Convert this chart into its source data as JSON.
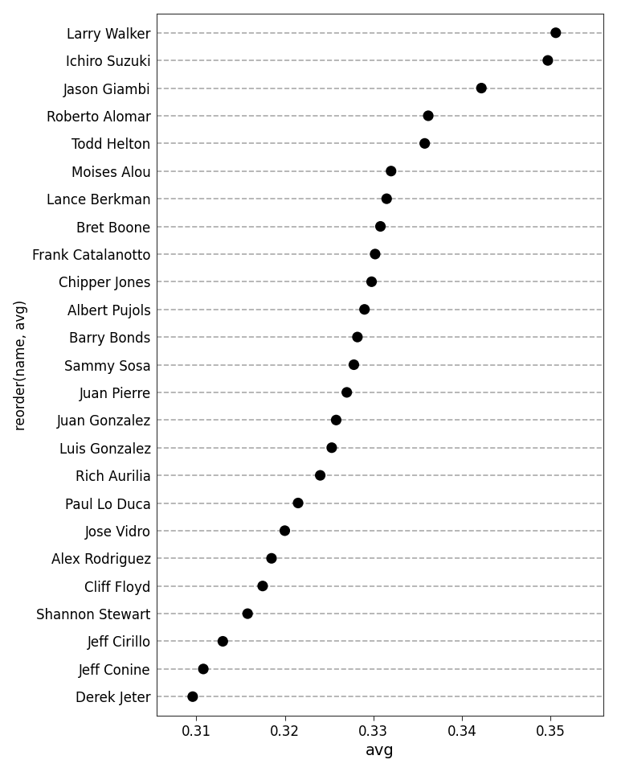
{
  "players": [
    {
      "name": "Derek Jeter",
      "avg": 0.3096
    },
    {
      "name": "Jeff Conine",
      "avg": 0.3108
    },
    {
      "name": "Jeff Cirillo",
      "avg": 0.313
    },
    {
      "name": "Shannon Stewart",
      "avg": 0.3158
    },
    {
      "name": "Cliff Floyd",
      "avg": 0.3175
    },
    {
      "name": "Alex Rodriguez",
      "avg": 0.3185
    },
    {
      "name": "Jose Vidro",
      "avg": 0.32
    },
    {
      "name": "Paul Lo Duca",
      "avg": 0.3215
    },
    {
      "name": "Rich Aurilia",
      "avg": 0.324
    },
    {
      "name": "Luis Gonzalez",
      "avg": 0.3253
    },
    {
      "name": "Juan Gonzalez",
      "avg": 0.3258
    },
    {
      "name": "Juan Pierre",
      "avg": 0.327
    },
    {
      "name": "Sammy Sosa",
      "avg": 0.3278
    },
    {
      "name": "Barry Bonds",
      "avg": 0.3282
    },
    {
      "name": "Albert Pujols",
      "avg": 0.329
    },
    {
      "name": "Chipper Jones",
      "avg": 0.3298
    },
    {
      "name": "Frank Catalanotto",
      "avg": 0.3302
    },
    {
      "name": "Bret Boone",
      "avg": 0.3308
    },
    {
      "name": "Lance Berkman",
      "avg": 0.3315
    },
    {
      "name": "Moises Alou",
      "avg": 0.332
    },
    {
      "name": "Todd Helton",
      "avg": 0.3358
    },
    {
      "name": "Roberto Alomar",
      "avg": 0.3362
    },
    {
      "name": "Jason Giambi",
      "avg": 0.3422
    },
    {
      "name": "Ichiro Suzuki",
      "avg": 0.3497
    },
    {
      "name": "Larry Walker",
      "avg": 0.3506
    }
  ],
  "xlabel": "avg",
  "ylabel": "reorder(name, avg)",
  "xlim": [
    0.3055,
    0.356
  ],
  "ylim": [
    -0.7,
    24.7
  ],
  "xticks": [
    0.31,
    0.32,
    0.33,
    0.34,
    0.35
  ],
  "dot_color": "#000000",
  "dot_size": 90,
  "bg_color": "#ffffff",
  "dash_color": "#aaaaaa",
  "label_fontsize": 14,
  "tick_fontsize": 12,
  "ylabel_fontsize": 12
}
